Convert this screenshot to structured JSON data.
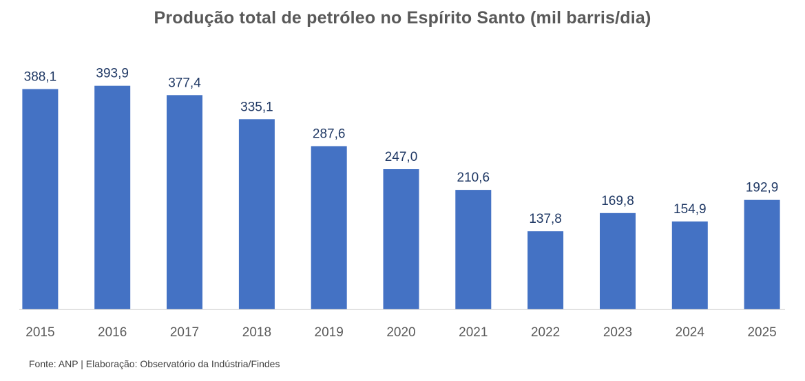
{
  "chart_data": {
    "type": "bar",
    "title": "Produção total de petróleo no Espírito Santo (mil barris/dia)",
    "categories": [
      "2015",
      "2016",
      "2017",
      "2018",
      "2019",
      "2020",
      "2021",
      "2022",
      "2023",
      "2024",
      "2025"
    ],
    "values": [
      388.1,
      393.9,
      377.4,
      335.1,
      287.6,
      247.0,
      210.6,
      137.8,
      169.8,
      154.9,
      192.9
    ],
    "value_labels": [
      "388,1",
      "393,9",
      "377,4",
      "335,1",
      "287,6",
      "247,0",
      "210,6",
      "137,8",
      "169,8",
      "154,9",
      "192,9"
    ],
    "xlabel": "",
    "ylabel": "",
    "ylim": [
      0,
      400
    ],
    "grid": false,
    "legend": "none",
    "colors": {
      "bar": "#4472c4",
      "data_label": "#1f3864",
      "tick_label": "#595959",
      "title": "#595959"
    }
  },
  "source_note": "Fonte: ANP | Elaboração: Observatório da Indústria/Findes"
}
